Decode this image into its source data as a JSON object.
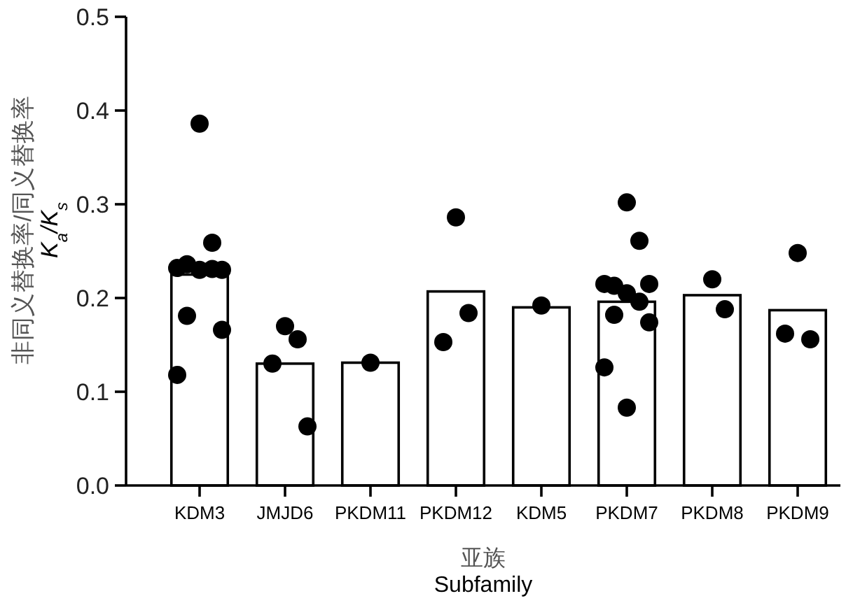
{
  "chart_data": {
    "type": "bar",
    "categories": [
      "KDM3",
      "JMJD6",
      "PKDM11",
      "PKDM12",
      "KDM5",
      "PKDM7",
      "PKDM8",
      "PKDM9"
    ],
    "xlabel": "亚族\nSubfamily",
    "ylabel": "非同义替换率/同义替换率\nK$_{a}$/K$_{s}$",
    "ylim": [
      0,
      0.5
    ],
    "yticks": [
      {
        "value": 0,
        "label": "0.0"
      },
      {
        "value": 0.1,
        "label": "0.1"
      },
      {
        "value": 0.2,
        "label": "0.2"
      },
      {
        "value": 0.3,
        "label": "0.3"
      },
      {
        "value": 0.4,
        "label": "0.4"
      },
      {
        "value": 0.5,
        "label": "0.5"
      }
    ],
    "grid": false,
    "marker": "circle",
    "series": [
      {
        "color": "#ffffff",
        "values": [
          0.225,
          0.13,
          0.131,
          0.207,
          0.19,
          0.196,
          0.203,
          0.187
        ]
      },
      {
        "type": "scatter",
        "color": "#000000",
        "x": [
          "KDM3",
          "KDM3",
          "KDM3",
          "KDM3",
          "KDM3",
          "KDM3",
          "KDM3",
          "KDM3",
          "KDM3",
          "KDM3",
          "JMJD6",
          "JMJD6",
          "JMJD6",
          "JMJD6",
          "PKDM11",
          "PKDM12",
          "PKDM12",
          "PKDM12",
          "KDM5",
          "PKDM7",
          "PKDM7",
          "PKDM7",
          "PKDM7",
          "PKDM7",
          "PKDM7",
          "PKDM7",
          "PKDM7",
          "PKDM7",
          "PKDM7",
          "PKDM7",
          "PKDM8",
          "PKDM8",
          "PKDM9",
          "PKDM9",
          "PKDM9"
        ],
        "values": [
          0.386,
          0.259,
          0.236,
          0.23,
          0.232,
          0.23,
          0.231,
          0.181,
          0.166,
          0.118,
          0.17,
          0.156,
          0.13,
          0.063,
          0.131,
          0.286,
          0.184,
          0.153,
          0.192,
          0.302,
          0.261,
          0.213,
          0.215,
          0.215,
          0.205,
          0.196,
          0.182,
          0.174,
          0.126,
          0.083,
          0.22,
          0.188,
          0.248,
          0.156,
          0.162
        ]
      }
    ]
  }
}
